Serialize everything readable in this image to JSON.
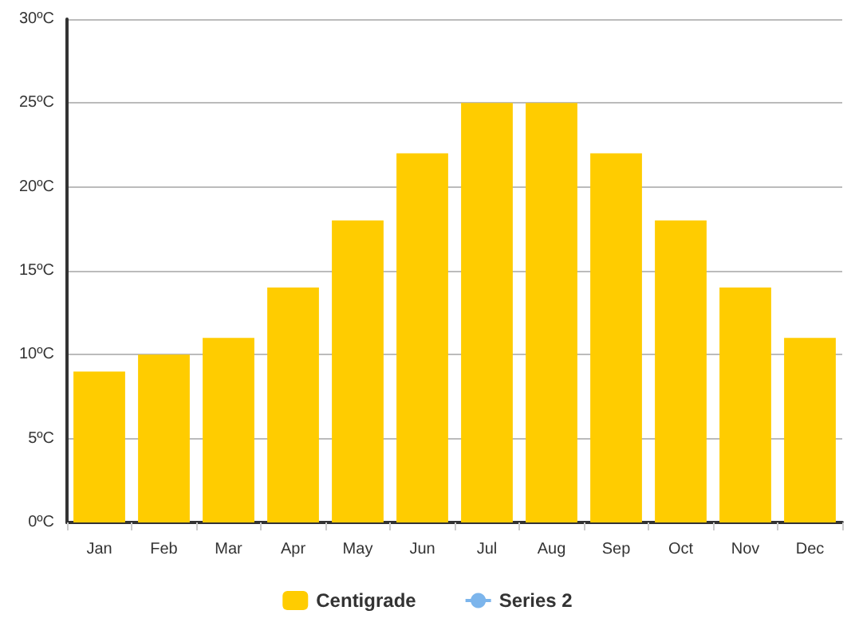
{
  "chart_data": {
    "type": "bar",
    "categories": [
      "Jan",
      "Feb",
      "Mar",
      "Apr",
      "May",
      "Jun",
      "Jul",
      "Aug",
      "Sep",
      "Oct",
      "Nov",
      "Dec"
    ],
    "series": [
      {
        "name": "Centigrade",
        "color": "#ffcc00",
        "values": [
          9,
          10,
          11,
          14,
          18,
          22,
          25,
          25,
          22,
          18,
          14,
          11
        ]
      },
      {
        "name": "Series 2",
        "type": "line",
        "color": "#7cb5ec",
        "values": [
          null,
          null,
          null,
          null,
          null,
          null,
          null,
          null,
          null,
          null,
          null,
          null
        ]
      }
    ],
    "ylim": [
      0,
      30
    ],
    "yticks": [
      {
        "value": 0,
        "label": "0ºC"
      },
      {
        "value": 5,
        "label": "5ºC"
      },
      {
        "value": 10,
        "label": "10ºC"
      },
      {
        "value": 15,
        "label": "15ºC"
      },
      {
        "value": 20,
        "label": "20ºC"
      },
      {
        "value": 25,
        "label": "25ºC"
      },
      {
        "value": 30,
        "label": "30ºC"
      }
    ],
    "grid": "y",
    "legend": "bottom"
  }
}
